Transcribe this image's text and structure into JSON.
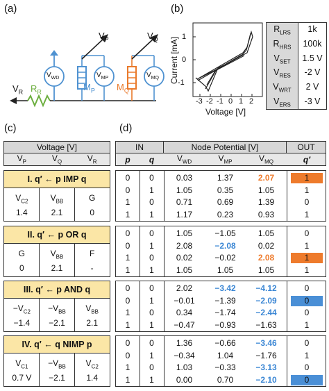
{
  "panel_labels": {
    "a": "(a)",
    "b": "(b)",
    "c": "(c)",
    "d": "(d)"
  },
  "circuit": {
    "vp": "V",
    "vp_sub": "P",
    "vq": "V",
    "vq_sub": "Q",
    "vr": "V",
    "vr_sub": "R",
    "rr": "R",
    "rr_sub": "R",
    "mp": "M",
    "mp_sub": "P",
    "mq": "M",
    "mq_sub": "Q",
    "vwd": "V",
    "vwd_sub": "WD",
    "vmp": "V",
    "vmp_sub": "MP",
    "vmq": "V",
    "vmq_sub": "MQ",
    "colors": {
      "green": "#6cae3f",
      "blue": "#4f92d1",
      "orange": "#ea7a2b"
    }
  },
  "iv_plot": {
    "ylabel": "Current [mA]",
    "xlabel": "Voltage [V]",
    "xticks": [
      "-3",
      "-2",
      "-1",
      "0",
      "1",
      "2"
    ],
    "yticks": [
      "1",
      "0",
      "-1"
    ]
  },
  "params": [
    {
      "name": "R",
      "sub": "LRS",
      "value": "1k"
    },
    {
      "name": "R",
      "sub": "HRS",
      "value": "100k"
    },
    {
      "name": "V",
      "sub": "SET",
      "value": "1.5 V"
    },
    {
      "name": "V",
      "sub": "RES",
      "value": "-2 V"
    },
    {
      "name": "V",
      "sub": "WRT",
      "value": "2 V"
    },
    {
      "name": "V",
      "sub": "ERS",
      "value": "-3 V"
    }
  ],
  "voltage_table": {
    "header": "Voltage [V]",
    "cols": [
      {
        "v": "V",
        "s": "P"
      },
      {
        "v": "V",
        "s": "Q"
      },
      {
        "v": "V",
        "s": "R"
      }
    ],
    "ops": [
      {
        "title": "I. q′ ← p IMP q",
        "labels": [
          {
            "v": "V",
            "s": "C2"
          },
          {
            "v": "V",
            "s": "BB"
          },
          {
            "v": "G",
            "s": ""
          }
        ],
        "values": [
          "1.4",
          "2.1",
          "0"
        ]
      },
      {
        "title": "II. q′ ← p OR q",
        "labels": [
          {
            "v": "G",
            "s": ""
          },
          {
            "v": "V",
            "s": "BB"
          },
          {
            "v": "F",
            "s": ""
          }
        ],
        "values": [
          "0",
          "2.1",
          "-"
        ]
      },
      {
        "title": "III. q′ ← p AND q",
        "labels": [
          {
            "v": "−V",
            "s": "C2"
          },
          {
            "v": "−V",
            "s": "BB"
          },
          {
            "v": "V",
            "s": "BB"
          }
        ],
        "values": [
          "−1.4",
          "−2.1",
          "2.1"
        ]
      },
      {
        "title": "IV. q′ ← q NIMP p",
        "labels": [
          {
            "v": "V",
            "s": "C1"
          },
          {
            "v": "−V",
            "s": "BB"
          },
          {
            "v": "V",
            "s": "C2"
          }
        ],
        "values": [
          "0.7 V",
          "−2.1",
          "1.4"
        ]
      }
    ]
  },
  "node_table": {
    "groups": {
      "in": "IN",
      "node": "Node Potential [V]",
      "out": "OUT"
    },
    "cols": {
      "p": "p",
      "q": "q",
      "vwd": "V",
      "vwd_s": "WD",
      "vmp": "V",
      "vmp_s": "MP",
      "vmq": "V",
      "vmq_s": "MQ",
      "out": "q′"
    },
    "blocks": [
      [
        {
          "p": "0",
          "q": "0",
          "vwd": "0.03",
          "vmp": "1.37",
          "vmq": "2.07",
          "out": "1",
          "mq": "orange",
          "hl": "orange"
        },
        {
          "p": "0",
          "q": "1",
          "vwd": "1.05",
          "vmp": "0.35",
          "vmq": "1.05",
          "out": "1"
        },
        {
          "p": "1",
          "q": "0",
          "vwd": "0.71",
          "vmp": "0.69",
          "vmq": "1.39",
          "out": "0"
        },
        {
          "p": "1",
          "q": "1",
          "vwd": "1.17",
          "vmp": "0.23",
          "vmq": "0.93",
          "out": "1"
        }
      ],
      [
        {
          "p": "0",
          "q": "0",
          "vwd": "1.05",
          "vmp": "−1.05",
          "vmq": "1.05",
          "out": "0"
        },
        {
          "p": "0",
          "q": "1",
          "vwd": "2.08",
          "vmp": "−2.08",
          "vmq": "0.02",
          "out": "1",
          "mp": "blue"
        },
        {
          "p": "1",
          "q": "0",
          "vwd": "0.02",
          "vmp": "−0.02",
          "vmq": "2.08",
          "out": "1",
          "mq": "orange",
          "hl": "orange"
        },
        {
          "p": "1",
          "q": "1",
          "vwd": "1.05",
          "vmp": "1.05",
          "vmq": "1.05",
          "out": "1"
        }
      ],
      [
        {
          "p": "0",
          "q": "0",
          "vwd": "2.02",
          "vmp": "−3.42",
          "vmq": "−4.12",
          "out": "0",
          "mp": "blue",
          "mq": "blue"
        },
        {
          "p": "0",
          "q": "1",
          "vwd": "−0.01",
          "vmp": "−1.39",
          "vmq": "−2.09",
          "out": "0",
          "mq": "blue",
          "hl": "blue"
        },
        {
          "p": "1",
          "q": "0",
          "vwd": "0.34",
          "vmp": "−1.74",
          "vmq": "−2.44",
          "out": "0",
          "mq": "blue"
        },
        {
          "p": "1",
          "q": "1",
          "vwd": "−0.47",
          "vmp": "−0.93",
          "vmq": "−1.63",
          "out": "1"
        }
      ],
      [
        {
          "p": "0",
          "q": "0",
          "vwd": "1.36",
          "vmp": "−0.66",
          "vmq": "−3.46",
          "out": "0",
          "mq": "blue"
        },
        {
          "p": "0",
          "q": "1",
          "vwd": "−0.34",
          "vmp": "1.04",
          "vmq": "−1.76",
          "out": "1"
        },
        {
          "p": "1",
          "q": "0",
          "vwd": "1.03",
          "vmp": "−0.33",
          "vmq": "−3.13",
          "out": "0",
          "mq": "blue"
        },
        {
          "p": "1",
          "q": "1",
          "vwd": "0.00",
          "vmp": "0.70",
          "vmq": "−2.10",
          "out": "0",
          "mq": "blue",
          "hl": "blue"
        }
      ]
    ]
  }
}
